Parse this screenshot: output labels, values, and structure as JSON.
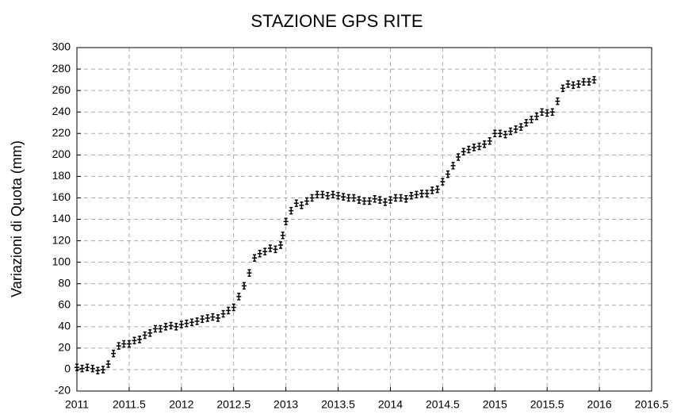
{
  "chart_data": {
    "type": "scatter",
    "title": "STAZIONE GPS RITE",
    "y_label": "Variazioni di Quota (mm)",
    "series": [
      {
        "name": "RITE",
        "color": "#000000",
        "x": [
          2011.0,
          2011.05,
          2011.1,
          2011.15,
          2011.2,
          2011.25,
          2011.3,
          2011.35,
          2011.4,
          2011.45,
          2011.5,
          2011.55,
          2011.6,
          2011.65,
          2011.7,
          2011.75,
          2011.8,
          2011.85,
          2011.9,
          2011.95,
          2012.0,
          2012.05,
          2012.1,
          2012.15,
          2012.2,
          2012.25,
          2012.3,
          2012.35,
          2012.4,
          2012.45,
          2012.5,
          2012.55,
          2012.6,
          2012.65,
          2012.7,
          2012.75,
          2012.8,
          2012.85,
          2012.9,
          2012.95,
          2012.97,
          2013.0,
          2013.05,
          2013.1,
          2013.15,
          2013.2,
          2013.25,
          2013.3,
          2013.35,
          2013.4,
          2013.45,
          2013.5,
          2013.55,
          2013.6,
          2013.65,
          2013.7,
          2013.75,
          2013.8,
          2013.85,
          2013.9,
          2013.95,
          2014.0,
          2014.05,
          2014.1,
          2014.15,
          2014.2,
          2014.25,
          2014.3,
          2014.35,
          2014.4,
          2014.45,
          2014.5,
          2014.55,
          2014.6,
          2014.65,
          2014.7,
          2014.75,
          2014.8,
          2014.85,
          2014.9,
          2014.95,
          2015.0,
          2015.05,
          2015.1,
          2015.15,
          2015.2,
          2015.25,
          2015.3,
          2015.35,
          2015.4,
          2015.45,
          2015.5,
          2015.55,
          2015.6,
          2015.65,
          2015.7,
          2015.75,
          2015.8,
          2015.85,
          2015.9,
          2015.95
        ],
        "values": [
          2,
          1,
          2,
          1,
          -1,
          0,
          5,
          15,
          22,
          24,
          24,
          27,
          28,
          32,
          34,
          38,
          38,
          40,
          41,
          40,
          42,
          43,
          44,
          45,
          47,
          48,
          49,
          48,
          52,
          55,
          58,
          68,
          78,
          90,
          104,
          108,
          110,
          113,
          112,
          116,
          125,
          138,
          148,
          155,
          153,
          157,
          160,
          163,
          163,
          162,
          163,
          162,
          161,
          160,
          160,
          158,
          157,
          157,
          159,
          158,
          156,
          158,
          160,
          160,
          159,
          162,
          163,
          164,
          164,
          167,
          168,
          175,
          182,
          190,
          198,
          203,
          205,
          207,
          208,
          210,
          213,
          220,
          220,
          219,
          222,
          224,
          226,
          230,
          233,
          236,
          240,
          239,
          240,
          250,
          262,
          266,
          265,
          266,
          268,
          268,
          270
        ]
      }
    ],
    "xlim": [
      2011,
      2016.5
    ],
    "xticks": [
      2011,
      2011.5,
      2012,
      2012.5,
      2013,
      2013.5,
      2014,
      2014.5,
      2015,
      2015.5,
      2016,
      2016.5
    ],
    "ylim": [
      -20,
      300
    ],
    "yticks": [
      -20,
      0,
      20,
      40,
      60,
      80,
      100,
      120,
      140,
      160,
      180,
      200,
      220,
      240,
      260,
      280,
      300
    ],
    "grid": true
  }
}
